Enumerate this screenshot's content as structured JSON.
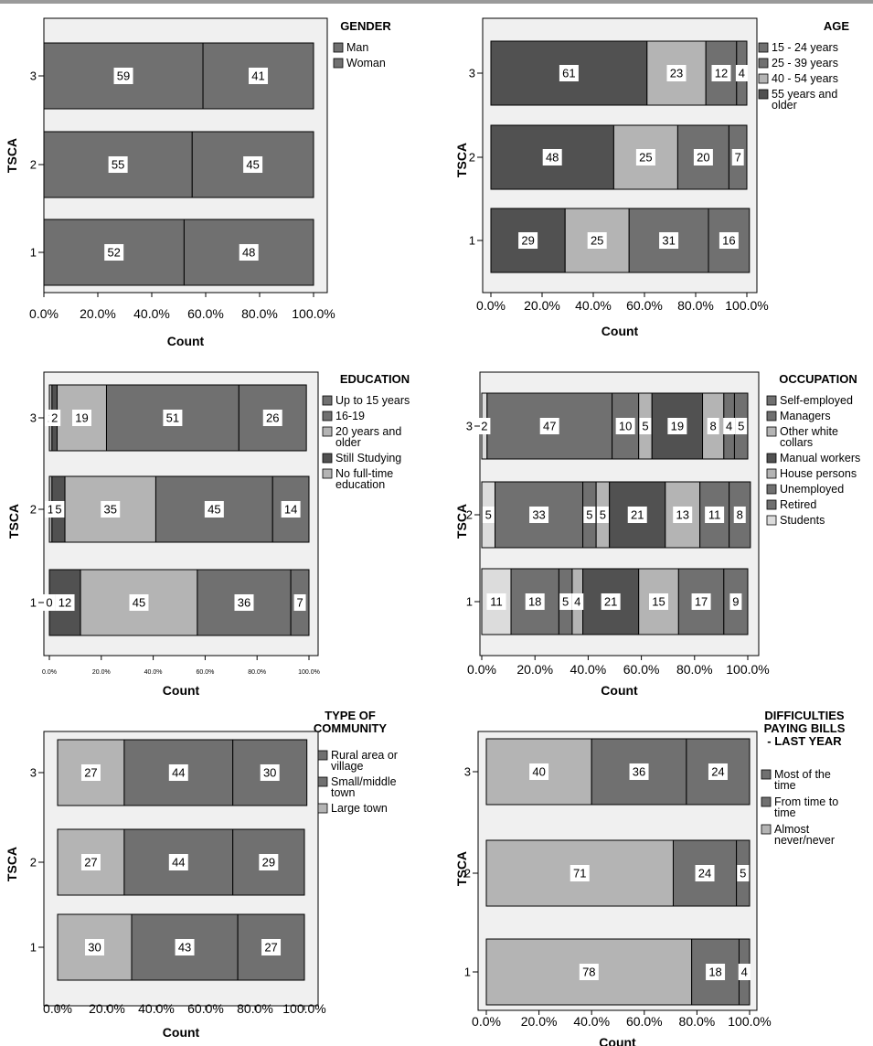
{
  "colors": {
    "dark": "#515151",
    "mid": "#707070",
    "light": "#b4b4b4",
    "lighter": "#c4c4c4",
    "lightest": "#dcdcdc",
    "frame": "#f0f0f0"
  },
  "chart_data": [
    {
      "type": "bar",
      "stacked": true,
      "orientation": "horizontal",
      "legend_title": "GENDER",
      "legend_placement": "right",
      "ylabel": "TSCA",
      "xlabel": "Count",
      "categories": [
        "3",
        "2",
        "1"
      ],
      "xticks": [
        "0.0%",
        "20.0%",
        "40.0%",
        "60.0%",
        "80.0%",
        "100.0%"
      ],
      "xlim": [
        0,
        100
      ],
      "series": [
        {
          "name": "Man",
          "values": [
            59,
            55,
            52
          ],
          "color": "#707070"
        },
        {
          "name": "Woman",
          "values": [
            41,
            45,
            48
          ],
          "color": "#707070"
        }
      ]
    },
    {
      "type": "bar",
      "stacked": true,
      "orientation": "horizontal",
      "legend_title": "AGE",
      "legend_placement": "right",
      "ylabel": "TSCA",
      "xlabel": "Count",
      "categories": [
        "3",
        "2",
        "1"
      ],
      "xticks": [
        "0.0%",
        "20.0%",
        "40.0%",
        "60.0%",
        "80.0%",
        "100.0%"
      ],
      "xlim": [
        0,
        100
      ],
      "series": [
        {
          "name": "55 years and older",
          "values": [
            61,
            48,
            29
          ],
          "color": "#515151"
        },
        {
          "name": "40 - 54 years",
          "values": [
            23,
            25,
            25
          ],
          "color": "#b4b4b4"
        },
        {
          "name": "25 - 39 years",
          "values": [
            12,
            20,
            31
          ],
          "color": "#707070"
        },
        {
          "name": "15 - 24 years",
          "values": [
            4,
            7,
            16
          ],
          "color": "#707070"
        }
      ],
      "legend_order": [
        "15 - 24 years",
        "25 - 39 years",
        "40 - 54 years",
        "55 years and older"
      ]
    },
    {
      "type": "bar",
      "stacked": true,
      "orientation": "horizontal",
      "legend_title": "EDUCATION",
      "legend_placement": "right",
      "ylabel": "TSCA",
      "xlabel": "Count",
      "categories": [
        "3",
        "2",
        "1"
      ],
      "xticks": [
        "0.0%",
        "20.0%",
        "40.0%",
        "60.0%",
        "80.0%",
        "100.0%"
      ],
      "xlim": [
        0,
        100
      ],
      "series": [
        {
          "name": "No full-time education",
          "values": [
            1,
            1,
            0
          ],
          "color": "#b4b4b4"
        },
        {
          "name": "Still Studying",
          "values": [
            2,
            5,
            12
          ],
          "color": "#515151"
        },
        {
          "name": "20 years and older",
          "values": [
            19,
            35,
            45
          ],
          "color": "#b4b4b4"
        },
        {
          "name": "16-19",
          "values": [
            51,
            45,
            36
          ],
          "color": "#707070"
        },
        {
          "name": "Up to 15 years",
          "values": [
            26,
            14,
            7
          ],
          "color": "#707070"
        }
      ],
      "legend_order": [
        "Up to 15 years",
        "16-19",
        "20 years and older",
        "Still Studying",
        "No full-time education"
      ]
    },
    {
      "type": "bar",
      "stacked": true,
      "orientation": "horizontal",
      "legend_title": "OCCUPATION",
      "legend_placement": "right",
      "ylabel": "TSCA",
      "xlabel": "Count",
      "categories": [
        "3",
        "2",
        "1"
      ],
      "xticks": [
        "0.0%",
        "20.0%",
        "40.0%",
        "60.0%",
        "80.0%",
        "100.0%"
      ],
      "xlim": [
        0,
        100
      ],
      "series": [
        {
          "name": "Students",
          "values": [
            2,
            5,
            11
          ],
          "color": "#dcdcdc"
        },
        {
          "name": "Retired",
          "values": [
            47,
            33,
            18
          ],
          "color": "#707070"
        },
        {
          "name": "Unemployed",
          "values": [
            10,
            5,
            5
          ],
          "color": "#707070"
        },
        {
          "name": "House persons",
          "values": [
            5,
            5,
            4
          ],
          "color": "#b4b4b4"
        },
        {
          "name": "Manual workers",
          "values": [
            19,
            21,
            21
          ],
          "color": "#515151"
        },
        {
          "name": "Other white collars",
          "values": [
            8,
            13,
            15
          ],
          "color": "#b4b4b4"
        },
        {
          "name": "Managers",
          "values": [
            4,
            11,
            17
          ],
          "color": "#707070"
        },
        {
          "name": "Self-employed",
          "values": [
            5,
            8,
            9
          ],
          "color": "#707070"
        }
      ],
      "legend_order": [
        "Self-employed",
        "Managers",
        "Other white collars",
        "Manual workers",
        "House persons",
        "Unemployed",
        "Retired",
        "Students"
      ]
    },
    {
      "type": "bar",
      "stacked": true,
      "orientation": "horizontal",
      "legend_title": "TYPE OF COMMUNITY",
      "legend_placement": "right",
      "ylabel": "TSCA",
      "xlabel": "Count",
      "categories": [
        "3",
        "2",
        "1"
      ],
      "xticks": [
        "0.0%",
        "20.0%",
        "40.0%",
        "60.0%",
        "80.0%",
        "100.0%"
      ],
      "xlim": [
        0,
        100
      ],
      "series": [
        {
          "name": "Large town",
          "values": [
            27,
            27,
            30
          ],
          "color": "#b4b4b4"
        },
        {
          "name": "Small/middle town",
          "values": [
            44,
            44,
            43
          ],
          "color": "#707070"
        },
        {
          "name": "Rural area or village",
          "values": [
            30,
            29,
            27
          ],
          "color": "#707070"
        }
      ],
      "legend_order": [
        "Rural area or village",
        "Small/middle town",
        "Large town"
      ]
    },
    {
      "type": "bar",
      "stacked": true,
      "orientation": "horizontal",
      "legend_title": "DIFFICULTIES PAYING BILLS - LAST YEAR",
      "legend_placement": "right",
      "ylabel": "TSCA",
      "xlabel": "Count",
      "categories": [
        "3",
        "2",
        "1"
      ],
      "xticks": [
        "0.0%",
        "20.0%",
        "40.0%",
        "60.0%",
        "80.0%",
        "100.0%"
      ],
      "xlim": [
        0,
        100
      ],
      "series": [
        {
          "name": "Almost never/never",
          "values": [
            40,
            71,
            78
          ],
          "color": "#b4b4b4"
        },
        {
          "name": "From time to time",
          "values": [
            36,
            24,
            18
          ],
          "color": "#707070"
        },
        {
          "name": "Most of the time",
          "values": [
            24,
            5,
            4
          ],
          "color": "#707070"
        }
      ],
      "legend_order": [
        "Most of the time",
        "From time to time",
        "Almost never/never"
      ]
    }
  ]
}
